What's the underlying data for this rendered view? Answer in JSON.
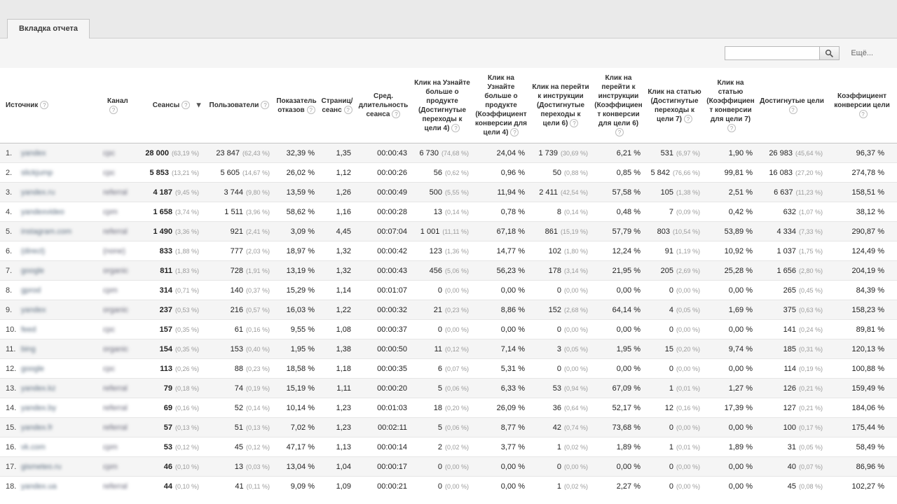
{
  "tab": {
    "label": "Вкладка отчета"
  },
  "toolbar": {
    "search_value": "",
    "more_label": "Ещё..."
  },
  "table": {
    "icons": {
      "help": "?",
      "sort_desc": "▼"
    },
    "columns": [
      {
        "key": "source",
        "label": "Источник",
        "align": "left"
      },
      {
        "key": "channel",
        "label": "Канал",
        "align": "left"
      },
      {
        "key": "sessions",
        "label": "Сеансы",
        "sorted": true
      },
      {
        "key": "users",
        "label": "Пользователи"
      },
      {
        "key": "bounce-rate",
        "label": "Показатель отказов"
      },
      {
        "key": "pages-per-session",
        "label": "Страниц/ сеанс"
      },
      {
        "key": "avg-session-duration",
        "label": "Сред. длительность сеанса"
      },
      {
        "key": "goal4-completions",
        "label": "Клик на Узнайте больше о продукте (Достигнутые переходы к цели 4)"
      },
      {
        "key": "goal4-rate",
        "label": "Клик на Узнайте больше о продукте (Коэффициент конверсии для цели 4)"
      },
      {
        "key": "goal6-completions",
        "label": "Клик на перейти к инструкции (Достигнутые переходы к цели 6)"
      },
      {
        "key": "goal6-rate",
        "label": "Клик на перейти к инструкции (Коэффициент конверсии для цели 6)"
      },
      {
        "key": "goal7-completions",
        "label": "Клик на статью (Достигнутые переходы к цели 7)"
      },
      {
        "key": "goal7-rate",
        "label": "Клик на статью (Коэффициент конверсии для цели 7)"
      },
      {
        "key": "goal-completions",
        "label": "Достигнутые цели"
      },
      {
        "key": "goal-conversion-rate",
        "label": "Коэффициент конверсии цели"
      }
    ],
    "rows": [
      {
        "n": "1.",
        "source": "yandex",
        "channel": "cpc",
        "cells": [
          [
            "28 000",
            "(63,19 %)"
          ],
          [
            "23 847",
            "(62,43 %)"
          ],
          [
            "32,39 %"
          ],
          [
            "1,35"
          ],
          [
            "00:00:43"
          ],
          [
            "6 730",
            "(74,68 %)"
          ],
          [
            "24,04 %"
          ],
          [
            "1 739",
            "(30,69 %)"
          ],
          [
            "6,21 %"
          ],
          [
            "531",
            "(6,97 %)"
          ],
          [
            "1,90 %"
          ],
          [
            "26 983",
            "(45,64 %)"
          ],
          [
            "96,37 %"
          ]
        ]
      },
      {
        "n": "2.",
        "source": "slickjump",
        "channel": "cpc",
        "cells": [
          [
            "5 853",
            "(13,21 %)"
          ],
          [
            "5 605",
            "(14,67 %)"
          ],
          [
            "26,02 %"
          ],
          [
            "1,12"
          ],
          [
            "00:00:26"
          ],
          [
            "56",
            "(0,62 %)"
          ],
          [
            "0,96 %"
          ],
          [
            "50",
            "(0,88 %)"
          ],
          [
            "0,85 %"
          ],
          [
            "5 842",
            "(76,66 %)"
          ],
          [
            "99,81 %"
          ],
          [
            "16 083",
            "(27,20 %)"
          ],
          [
            "274,78 %"
          ]
        ]
      },
      {
        "n": "3.",
        "source": "yandex.ru",
        "channel": "referral",
        "cells": [
          [
            "4 187",
            "(9,45 %)"
          ],
          [
            "3 744",
            "(9,80 %)"
          ],
          [
            "13,59 %"
          ],
          [
            "1,26"
          ],
          [
            "00:00:49"
          ],
          [
            "500",
            "(5,55 %)"
          ],
          [
            "11,94 %"
          ],
          [
            "2 411",
            "(42,54 %)"
          ],
          [
            "57,58 %"
          ],
          [
            "105",
            "(1,38 %)"
          ],
          [
            "2,51 %"
          ],
          [
            "6 637",
            "(11,23 %)"
          ],
          [
            "158,51 %"
          ]
        ]
      },
      {
        "n": "4.",
        "source": "yandexvideo",
        "channel": "cpm",
        "cells": [
          [
            "1 658",
            "(3,74 %)"
          ],
          [
            "1 511",
            "(3,96 %)"
          ],
          [
            "58,62 %"
          ],
          [
            "1,16"
          ],
          [
            "00:00:28"
          ],
          [
            "13",
            "(0,14 %)"
          ],
          [
            "0,78 %"
          ],
          [
            "8",
            "(0,14 %)"
          ],
          [
            "0,48 %"
          ],
          [
            "7",
            "(0,09 %)"
          ],
          [
            "0,42 %"
          ],
          [
            "632",
            "(1,07 %)"
          ],
          [
            "38,12 %"
          ]
        ]
      },
      {
        "n": "5.",
        "source": "instagram.com",
        "channel": "referral",
        "cells": [
          [
            "1 490",
            "(3,36 %)"
          ],
          [
            "921",
            "(2,41 %)"
          ],
          [
            "3,09 %"
          ],
          [
            "4,45"
          ],
          [
            "00:07:04"
          ],
          [
            "1 001",
            "(11,11 %)"
          ],
          [
            "67,18 %"
          ],
          [
            "861",
            "(15,19 %)"
          ],
          [
            "57,79 %"
          ],
          [
            "803",
            "(10,54 %)"
          ],
          [
            "53,89 %"
          ],
          [
            "4 334",
            "(7,33 %)"
          ],
          [
            "290,87 %"
          ]
        ]
      },
      {
        "n": "6.",
        "source": "(direct)",
        "channel": "(none)",
        "cells": [
          [
            "833",
            "(1,88 %)"
          ],
          [
            "777",
            "(2,03 %)"
          ],
          [
            "18,97 %"
          ],
          [
            "1,32"
          ],
          [
            "00:00:42"
          ],
          [
            "123",
            "(1,36 %)"
          ],
          [
            "14,77 %"
          ],
          [
            "102",
            "(1,80 %)"
          ],
          [
            "12,24 %"
          ],
          [
            "91",
            "(1,19 %)"
          ],
          [
            "10,92 %"
          ],
          [
            "1 037",
            "(1,75 %)"
          ],
          [
            "124,49 %"
          ]
        ]
      },
      {
        "n": "7.",
        "source": "google",
        "channel": "organic",
        "cells": [
          [
            "811",
            "(1,83 %)"
          ],
          [
            "728",
            "(1,91 %)"
          ],
          [
            "13,19 %"
          ],
          [
            "1,32"
          ],
          [
            "00:00:43"
          ],
          [
            "456",
            "(5,06 %)"
          ],
          [
            "56,23 %"
          ],
          [
            "178",
            "(3,14 %)"
          ],
          [
            "21,95 %"
          ],
          [
            "205",
            "(2,69 %)"
          ],
          [
            "25,28 %"
          ],
          [
            "1 656",
            "(2,80 %)"
          ],
          [
            "204,19 %"
          ]
        ]
      },
      {
        "n": "8.",
        "source": "gprod",
        "channel": "cpm",
        "cells": [
          [
            "314",
            "(0,71 %)"
          ],
          [
            "140",
            "(0,37 %)"
          ],
          [
            "15,29 %"
          ],
          [
            "1,14"
          ],
          [
            "00:01:07"
          ],
          [
            "0",
            "(0,00 %)"
          ],
          [
            "0,00 %"
          ],
          [
            "0",
            "(0,00 %)"
          ],
          [
            "0,00 %"
          ],
          [
            "0",
            "(0,00 %)"
          ],
          [
            "0,00 %"
          ],
          [
            "265",
            "(0,45 %)"
          ],
          [
            "84,39 %"
          ]
        ]
      },
      {
        "n": "9.",
        "source": "yandex",
        "channel": "organic",
        "cells": [
          [
            "237",
            "(0,53 %)"
          ],
          [
            "216",
            "(0,57 %)"
          ],
          [
            "16,03 %"
          ],
          [
            "1,22"
          ],
          [
            "00:00:32"
          ],
          [
            "21",
            "(0,23 %)"
          ],
          [
            "8,86 %"
          ],
          [
            "152",
            "(2,68 %)"
          ],
          [
            "64,14 %"
          ],
          [
            "4",
            "(0,05 %)"
          ],
          [
            "1,69 %"
          ],
          [
            "375",
            "(0,63 %)"
          ],
          [
            "158,23 %"
          ]
        ]
      },
      {
        "n": "10.",
        "source": "feed",
        "channel": "cpc",
        "cells": [
          [
            "157",
            "(0,35 %)"
          ],
          [
            "61",
            "(0,16 %)"
          ],
          [
            "9,55 %"
          ],
          [
            "1,08"
          ],
          [
            "00:00:37"
          ],
          [
            "0",
            "(0,00 %)"
          ],
          [
            "0,00 %"
          ],
          [
            "0",
            "(0,00 %)"
          ],
          [
            "0,00 %"
          ],
          [
            "0",
            "(0,00 %)"
          ],
          [
            "0,00 %"
          ],
          [
            "141",
            "(0,24 %)"
          ],
          [
            "89,81 %"
          ]
        ]
      },
      {
        "n": "11.",
        "source": "bing",
        "channel": "organic",
        "cells": [
          [
            "154",
            "(0,35 %)"
          ],
          [
            "153",
            "(0,40 %)"
          ],
          [
            "1,95 %"
          ],
          [
            "1,38"
          ],
          [
            "00:00:50"
          ],
          [
            "11",
            "(0,12 %)"
          ],
          [
            "7,14 %"
          ],
          [
            "3",
            "(0,05 %)"
          ],
          [
            "1,95 %"
          ],
          [
            "15",
            "(0,20 %)"
          ],
          [
            "9,74 %"
          ],
          [
            "185",
            "(0,31 %)"
          ],
          [
            "120,13 %"
          ]
        ]
      },
      {
        "n": "12.",
        "source": "google",
        "channel": "cpc",
        "cells": [
          [
            "113",
            "(0,26 %)"
          ],
          [
            "88",
            "(0,23 %)"
          ],
          [
            "18,58 %"
          ],
          [
            "1,18"
          ],
          [
            "00:00:35"
          ],
          [
            "6",
            "(0,07 %)"
          ],
          [
            "5,31 %"
          ],
          [
            "0",
            "(0,00 %)"
          ],
          [
            "0,00 %"
          ],
          [
            "0",
            "(0,00 %)"
          ],
          [
            "0,00 %"
          ],
          [
            "114",
            "(0,19 %)"
          ],
          [
            "100,88 %"
          ]
        ]
      },
      {
        "n": "13.",
        "source": "yandex.kz",
        "channel": "referral",
        "cells": [
          [
            "79",
            "(0,18 %)"
          ],
          [
            "74",
            "(0,19 %)"
          ],
          [
            "15,19 %"
          ],
          [
            "1,11"
          ],
          [
            "00:00:20"
          ],
          [
            "5",
            "(0,06 %)"
          ],
          [
            "6,33 %"
          ],
          [
            "53",
            "(0,94 %)"
          ],
          [
            "67,09 %"
          ],
          [
            "1",
            "(0,01 %)"
          ],
          [
            "1,27 %"
          ],
          [
            "126",
            "(0,21 %)"
          ],
          [
            "159,49 %"
          ]
        ]
      },
      {
        "n": "14.",
        "source": "yandex.by",
        "channel": "referral",
        "cells": [
          [
            "69",
            "(0,16 %)"
          ],
          [
            "52",
            "(0,14 %)"
          ],
          [
            "10,14 %"
          ],
          [
            "1,23"
          ],
          [
            "00:01:03"
          ],
          [
            "18",
            "(0,20 %)"
          ],
          [
            "26,09 %"
          ],
          [
            "36",
            "(0,64 %)"
          ],
          [
            "52,17 %"
          ],
          [
            "12",
            "(0,16 %)"
          ],
          [
            "17,39 %"
          ],
          [
            "127",
            "(0,21 %)"
          ],
          [
            "184,06 %"
          ]
        ]
      },
      {
        "n": "15.",
        "source": "yandex.fr",
        "channel": "referral",
        "cells": [
          [
            "57",
            "(0,13 %)"
          ],
          [
            "51",
            "(0,13 %)"
          ],
          [
            "7,02 %"
          ],
          [
            "1,23"
          ],
          [
            "00:02:11"
          ],
          [
            "5",
            "(0,06 %)"
          ],
          [
            "8,77 %"
          ],
          [
            "42",
            "(0,74 %)"
          ],
          [
            "73,68 %"
          ],
          [
            "0",
            "(0,00 %)"
          ],
          [
            "0,00 %"
          ],
          [
            "100",
            "(0,17 %)"
          ],
          [
            "175,44 %"
          ]
        ]
      },
      {
        "n": "16.",
        "source": "vk.com",
        "channel": "cpm",
        "cells": [
          [
            "53",
            "(0,12 %)"
          ],
          [
            "45",
            "(0,12 %)"
          ],
          [
            "47,17 %"
          ],
          [
            "1,13"
          ],
          [
            "00:00:14"
          ],
          [
            "2",
            "(0,02 %)"
          ],
          [
            "3,77 %"
          ],
          [
            "1",
            "(0,02 %)"
          ],
          [
            "1,89 %"
          ],
          [
            "1",
            "(0,01 %)"
          ],
          [
            "1,89 %"
          ],
          [
            "31",
            "(0,05 %)"
          ],
          [
            "58,49 %"
          ]
        ]
      },
      {
        "n": "17.",
        "source": "gismeteo.ru",
        "channel": "cpm",
        "cells": [
          [
            "46",
            "(0,10 %)"
          ],
          [
            "13",
            "(0,03 %)"
          ],
          [
            "13,04 %"
          ],
          [
            "1,04"
          ],
          [
            "00:00:17"
          ],
          [
            "0",
            "(0,00 %)"
          ],
          [
            "0,00 %"
          ],
          [
            "0",
            "(0,00 %)"
          ],
          [
            "0,00 %"
          ],
          [
            "0",
            "(0,00 %)"
          ],
          [
            "0,00 %"
          ],
          [
            "40",
            "(0,07 %)"
          ],
          [
            "86,96 %"
          ]
        ]
      },
      {
        "n": "18.",
        "source": "yandex.ua",
        "channel": "referral",
        "cells": [
          [
            "44",
            "(0,10 %)"
          ],
          [
            "41",
            "(0,11 %)"
          ],
          [
            "9,09 %"
          ],
          [
            "1,09"
          ],
          [
            "00:00:21"
          ],
          [
            "0",
            "(0,00 %)"
          ],
          [
            "0,00 %"
          ],
          [
            "1",
            "(0,02 %)"
          ],
          [
            "2,27 %"
          ],
          [
            "0",
            "(0,00 %)"
          ],
          [
            "0,00 %"
          ],
          [
            "45",
            "(0,08 %)"
          ],
          [
            "102,27 %"
          ]
        ]
      }
    ]
  }
}
